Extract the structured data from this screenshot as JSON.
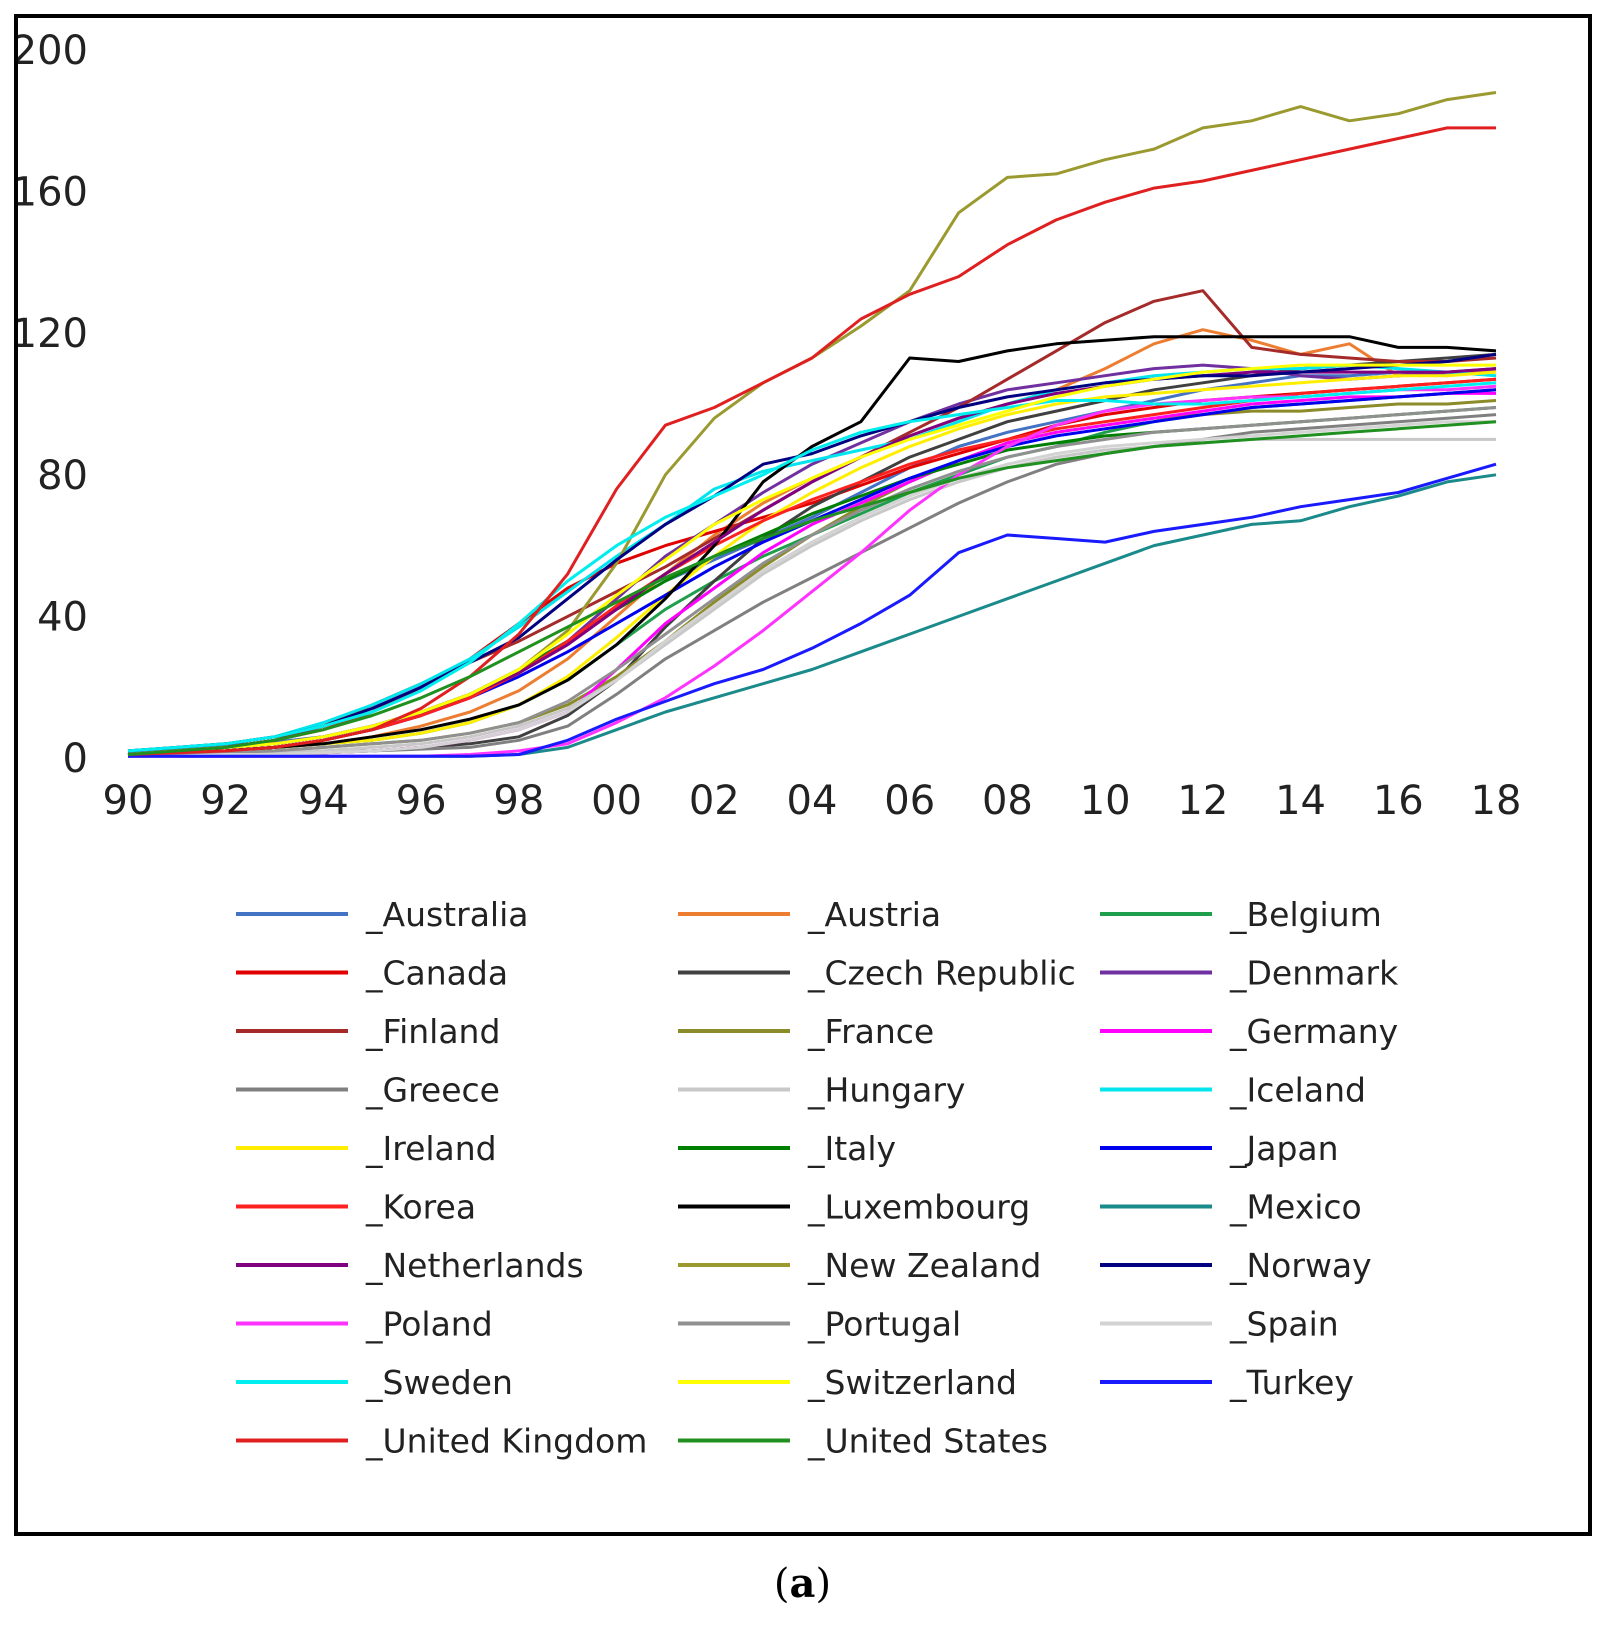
{
  "caption": {
    "open": "(",
    "letter": "a",
    "close": ")"
  },
  "chart_data": {
    "type": "line",
    "title": "",
    "xlabel": "",
    "ylabel": "",
    "xlim": [
      1990,
      2018
    ],
    "ylim": [
      0,
      200
    ],
    "grid": false,
    "legend_position": "bottom",
    "x_ticks": [
      1990,
      1992,
      1994,
      1996,
      1998,
      2000,
      2002,
      2004,
      2006,
      2008,
      2010,
      2012,
      2014,
      2016,
      2018
    ],
    "x_tick_labels": [
      "90",
      "92",
      "94",
      "96",
      "98",
      "00",
      "02",
      "04",
      "06",
      "08",
      "10",
      "12",
      "14",
      "16",
      "18"
    ],
    "y_ticks": [
      0,
      40,
      80,
      120,
      160,
      200
    ],
    "y_tick_labels": [
      "0",
      "40",
      "80",
      "120",
      "160",
      "200"
    ],
    "x": [
      1990,
      1991,
      1992,
      1993,
      1994,
      1995,
      1996,
      1997,
      1998,
      1999,
      2000,
      2001,
      2002,
      2003,
      2004,
      2005,
      2006,
      2007,
      2008,
      2009,
      2010,
      2011,
      2012,
      2013,
      2014,
      2015,
      2016,
      2017,
      2018
    ],
    "series": [
      {
        "name": "_Australia",
        "color": "#4472C4",
        "values": [
          1.5,
          2.5,
          3.5,
          4.5,
          6,
          9,
          13,
          18,
          25,
          33,
          42,
          50,
          56,
          62,
          68,
          75,
          82,
          88,
          92,
          95,
          98,
          101,
          104,
          106,
          108,
          108,
          109,
          108,
          110
        ]
      },
      {
        "name": "_Austria",
        "color": "#ED7D31",
        "values": [
          1,
          1.5,
          2,
          3,
          4,
          6,
          9,
          13,
          19,
          28,
          40,
          52,
          63,
          72,
          79,
          85,
          91,
          96,
          100,
          104,
          110,
          117,
          121,
          118,
          114,
          117,
          108,
          109,
          109
        ]
      },
      {
        "name": "_Belgium",
        "color": "#1F9E4B",
        "values": [
          1,
          1.5,
          2,
          3,
          4,
          5,
          7,
          10,
          15,
          22,
          32,
          42,
          50,
          57,
          63,
          69,
          75,
          80,
          85,
          88,
          92,
          95,
          97,
          99,
          100,
          101,
          102,
          103,
          104
        ]
      },
      {
        "name": "_Canada",
        "color": "#E00000",
        "values": [
          1,
          2,
          3,
          5,
          8,
          13,
          20,
          28,
          38,
          48,
          55,
          60,
          64,
          68,
          72,
          77,
          82,
          86,
          90,
          94,
          97,
          99,
          101,
          102,
          103,
          104,
          105,
          106,
          107
        ]
      },
      {
        "name": "_Czech Republic",
        "color": "#404040",
        "values": [
          0.5,
          0.5,
          1,
          1,
          1.5,
          2,
          3,
          4,
          6,
          12,
          22,
          37,
          50,
          62,
          71,
          78,
          85,
          90,
          95,
          98,
          101,
          104,
          106,
          108,
          110,
          111,
          112,
          113,
          114
        ]
      },
      {
        "name": "_Denmark",
        "color": "#7030A0",
        "values": [
          1,
          2,
          3,
          4,
          6,
          9,
          13,
          18,
          24,
          33,
          45,
          57,
          66,
          75,
          83,
          89,
          95,
          100,
          104,
          106,
          108,
          110,
          111,
          110,
          108,
          107,
          108,
          109,
          110
        ]
      },
      {
        "name": "_Finland",
        "color": "#A52A2A",
        "values": [
          1,
          2,
          3,
          5,
          9,
          15,
          21,
          27,
          33,
          40,
          47,
          54,
          62,
          70,
          78,
          85,
          92,
          99,
          107,
          115,
          123,
          129,
          132,
          116,
          114,
          113,
          112,
          112,
          113
        ]
      },
      {
        "name": "_France",
        "color": "#8B8B2A",
        "values": [
          0.5,
          1,
          1.5,
          2,
          3,
          4,
          5,
          7,
          10,
          15,
          23,
          33,
          44,
          54,
          63,
          71,
          78,
          84,
          89,
          92,
          94,
          96,
          97,
          98,
          98,
          99,
          100,
          100,
          101
        ]
      },
      {
        "name": "_Germany",
        "color": "#FF00FF",
        "values": [
          0.5,
          0.5,
          1,
          1,
          1.5,
          2,
          3,
          5,
          8,
          13,
          25,
          38,
          48,
          58,
          66,
          72,
          78,
          84,
          89,
          92,
          94,
          96,
          98,
          100,
          101,
          102,
          102,
          103,
          103
        ]
      },
      {
        "name": "_Greece",
        "color": "#808080",
        "values": [
          0.5,
          0.5,
          1,
          1,
          1.5,
          2,
          2.5,
          3,
          5,
          9,
          18,
          28,
          36,
          44,
          51,
          58,
          65,
          72,
          78,
          83,
          86,
          88,
          90,
          92,
          93,
          94,
          95,
          96,
          97
        ]
      },
      {
        "name": "_Hungary",
        "color": "#C8C8C8",
        "values": [
          0.5,
          0.5,
          1,
          1.5,
          2,
          3,
          4,
          6,
          9,
          14,
          22,
          32,
          42,
          52,
          60,
          67,
          73,
          78,
          82,
          85,
          87,
          88,
          89,
          90,
          90,
          90,
          90,
          90,
          90
        ]
      },
      {
        "name": "_Iceland",
        "color": "#00E5EE",
        "values": [
          2,
          3,
          4,
          6,
          10,
          15,
          21,
          28,
          37,
          47,
          57,
          66,
          76,
          81,
          84,
          87,
          90,
          95,
          100,
          104,
          106,
          108,
          109,
          110,
          110,
          111,
          110,
          109,
          108
        ]
      },
      {
        "name": "_Ireland",
        "color": "#FFEE00",
        "values": [
          1,
          1.5,
          2,
          3,
          4,
          5,
          7,
          10,
          15,
          23,
          34,
          46,
          57,
          67,
          75,
          82,
          88,
          93,
          97,
          100,
          102,
          103,
          104,
          105,
          106,
          107,
          108,
          108,
          109
        ]
      },
      {
        "name": "_Italy",
        "color": "#008000",
        "values": [
          1,
          1.5,
          2,
          3,
          5,
          8,
          12,
          18,
          25,
          33,
          42,
          50,
          57,
          63,
          69,
          74,
          79,
          83,
          87,
          89,
          91,
          92,
          93,
          94,
          95,
          96,
          97,
          98,
          99
        ]
      },
      {
        "name": "_Japan",
        "color": "#0000EE",
        "values": [
          1,
          1.5,
          2,
          3,
          5,
          8,
          12,
          17,
          23,
          30,
          38,
          46,
          54,
          61,
          67,
          73,
          79,
          84,
          88,
          91,
          93,
          95,
          97,
          99,
          100,
          101,
          102,
          103,
          104
        ]
      },
      {
        "name": "_Korea",
        "color": "#FF2020",
        "values": [
          0.5,
          1,
          2,
          3,
          5,
          8,
          12,
          17,
          24,
          33,
          43,
          52,
          60,
          67,
          73,
          78,
          83,
          87,
          90,
          93,
          95,
          97,
          99,
          101,
          103,
          104,
          105,
          106,
          107
        ]
      },
      {
        "name": "_Luxembourg",
        "color": "#000000",
        "values": [
          1,
          1.5,
          2,
          3,
          4,
          6,
          8,
          11,
          15,
          22,
          32,
          45,
          60,
          78,
          88,
          95,
          113,
          112,
          115,
          117,
          118,
          119,
          119,
          119,
          119,
          119,
          116,
          116,
          115
        ]
      },
      {
        "name": "_Mexico",
        "color": "#1A8A8A",
        "values": [
          0.5,
          0.5,
          0.5,
          0.5,
          0.5,
          0.5,
          0.5,
          0.5,
          1,
          3,
          8,
          13,
          17,
          21,
          25,
          30,
          35,
          40,
          45,
          50,
          55,
          60,
          63,
          66,
          67,
          71,
          74,
          78,
          80
        ]
      },
      {
        "name": "_Netherlands",
        "color": "#800080",
        "values": [
          1,
          2,
          3,
          4,
          6,
          9,
          13,
          18,
          24,
          32,
          42,
          52,
          61,
          70,
          78,
          85,
          91,
          96,
          100,
          103,
          105,
          107,
          108,
          109,
          109,
          109,
          109,
          109,
          110
        ]
      },
      {
        "name": "_New Zealand",
        "color": "#9A9A30",
        "values": [
          1,
          2,
          3,
          4,
          6,
          9,
          13,
          18,
          25,
          36,
          55,
          80,
          96,
          106,
          113,
          122,
          132,
          154,
          164,
          165,
          169,
          172,
          178,
          180,
          184,
          180,
          182,
          186,
          188
        ]
      },
      {
        "name": "_Norway",
        "color": "#000080",
        "values": [
          2,
          3,
          4,
          6,
          9,
          14,
          20,
          27,
          34,
          45,
          56,
          66,
          74,
          83,
          86,
          91,
          95,
          99,
          102,
          104,
          106,
          107,
          108,
          108,
          109,
          110,
          111,
          112,
          114
        ]
      },
      {
        "name": "_Poland",
        "color": "#FF33FF",
        "values": [
          0.5,
          0.5,
          0.5,
          0.5,
          0.5,
          0.5,
          0.5,
          1,
          2,
          4,
          10,
          17,
          26,
          36,
          47,
          58,
          70,
          80,
          88,
          94,
          98,
          100,
          101,
          102,
          102,
          103,
          104,
          104,
          105
        ]
      },
      {
        "name": "_Portugal",
        "color": "#909090",
        "values": [
          0.5,
          1,
          1.5,
          2,
          3,
          4,
          5,
          7,
          10,
          16,
          25,
          35,
          45,
          55,
          63,
          70,
          76,
          81,
          85,
          88,
          90,
          92,
          93,
          94,
          95,
          96,
          97,
          98,
          99
        ]
      },
      {
        "name": "_Spain",
        "color": "#D3D3D3",
        "values": [
          0.5,
          0.5,
          1,
          1,
          1.5,
          2,
          3,
          5,
          8,
          13,
          22,
          33,
          43,
          53,
          61,
          68,
          74,
          79,
          83,
          86,
          88,
          89,
          90,
          91,
          92,
          93,
          94,
          95,
          95
        ]
      },
      {
        "name": "_Sweden",
        "color": "#00EEEE",
        "values": [
          2,
          3,
          4,
          6,
          9,
          13,
          19,
          27,
          38,
          50,
          60,
          68,
          74,
          80,
          87,
          92,
          95,
          97,
          99,
          101,
          101,
          100,
          100,
          101,
          102,
          103,
          104,
          105,
          106
        ]
      },
      {
        "name": "_Switzerland",
        "color": "#FFFF00",
        "values": [
          1,
          2,
          3,
          4,
          6,
          9,
          13,
          18,
          25,
          35,
          46,
          56,
          66,
          73,
          79,
          85,
          90,
          94,
          98,
          102,
          105,
          107,
          109,
          110,
          111,
          111,
          111,
          111,
          111
        ]
      },
      {
        "name": "_Turkey",
        "color": "#1A1AFF",
        "values": [
          0.5,
          0.5,
          0.5,
          0.5,
          0.5,
          0.5,
          0.5,
          0.5,
          1,
          5,
          11,
          16,
          21,
          25,
          31,
          38,
          46,
          58,
          63,
          62,
          61,
          64,
          66,
          68,
          71,
          73,
          75,
          79,
          83
        ]
      },
      {
        "name": "_United Kingdom",
        "color": "#E02020",
        "values": [
          1,
          1.5,
          2,
          3,
          5,
          8,
          14,
          23,
          35,
          52,
          76,
          94,
          99,
          106,
          113,
          124,
          131,
          136,
          145,
          152,
          157,
          161,
          163,
          166,
          169,
          172,
          175,
          178,
          178
        ]
      },
      {
        "name": "_United States",
        "color": "#209020",
        "values": [
          1,
          2,
          3,
          5,
          8,
          12,
          17,
          23,
          30,
          37,
          44,
          51,
          57,
          62,
          67,
          71,
          75,
          79,
          82,
          84,
          86,
          88,
          89,
          90,
          91,
          92,
          93,
          94,
          95
        ]
      }
    ]
  }
}
